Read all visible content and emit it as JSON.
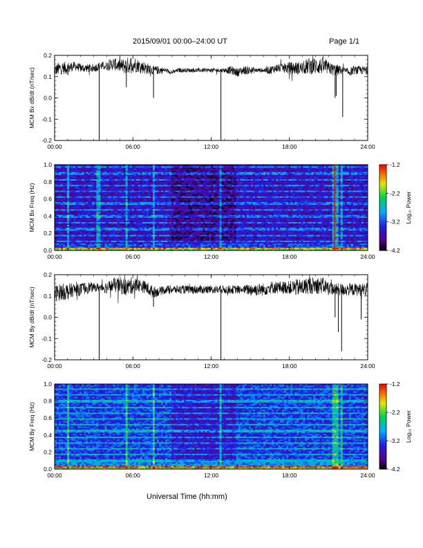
{
  "header": {
    "title": "2015/09/01  00:00–24:00 UT",
    "page": "Page 1/1"
  },
  "footer": {
    "xlabel": "Universal Time (hh:mm)"
  },
  "chart_data": [
    {
      "type": "line",
      "ylabel": "MCM Bx dB/dt (nT/sec)",
      "xlim": [
        "00:00",
        "24:00"
      ],
      "ylim": [
        -0.2,
        0.2
      ],
      "x_ticks": [
        "00:00",
        "06:00",
        "12:00",
        "18:00",
        "24:00"
      ],
      "y_ticks": [
        "-0.2",
        "-0.1",
        "0.0",
        "0.1",
        "0.2"
      ],
      "series": [
        {
          "x": [
            "00:00",
            "00:30",
            "01:00",
            "01:30",
            "02:00",
            "02:30",
            "03:00",
            "03:30",
            "04:00",
            "04:30",
            "05:00",
            "05:30",
            "06:00",
            "06:30",
            "07:00",
            "07:30",
            "08:00",
            "08:30",
            "09:00",
            "09:30",
            "10:00",
            "10:30",
            "11:00",
            "11:30",
            "12:00",
            "12:30",
            "13:00",
            "13:30",
            "14:00",
            "14:30",
            "15:00",
            "15:30",
            "16:00",
            "16:30",
            "17:00",
            "17:30",
            "18:00",
            "18:30",
            "19:00",
            "19:30",
            "20:00",
            "20:30",
            "21:00",
            "21:30",
            "22:00",
            "22:30",
            "23:00",
            "23:30",
            "24:00"
          ],
          "mean": [
            0.13,
            0.14,
            0.14,
            0.15,
            0.14,
            0.14,
            0.14,
            0.15,
            0.15,
            0.16,
            0.15,
            0.15,
            0.16,
            0.15,
            0.14,
            0.13,
            0.13,
            0.13,
            0.12,
            0.13,
            0.13,
            0.13,
            0.13,
            0.13,
            0.13,
            0.13,
            0.13,
            0.13,
            0.12,
            0.13,
            0.13,
            0.13,
            0.13,
            0.13,
            0.14,
            0.14,
            0.14,
            0.14,
            0.14,
            0.15,
            0.15,
            0.15,
            0.14,
            0.13,
            0.13,
            0.12,
            0.13,
            0.13,
            0.13
          ],
          "amp": [
            0.03,
            0.03,
            0.03,
            0.02,
            0.02,
            0.02,
            0.02,
            0.02,
            0.02,
            0.03,
            0.03,
            0.04,
            0.04,
            0.03,
            0.03,
            0.02,
            0.02,
            0.01,
            0.01,
            0.01,
            0.01,
            0.01,
            0.01,
            0.01,
            0.01,
            0.01,
            0.01,
            0.02,
            0.02,
            0.02,
            0.02,
            0.01,
            0.01,
            0.02,
            0.02,
            0.02,
            0.03,
            0.03,
            0.03,
            0.04,
            0.04,
            0.04,
            0.03,
            0.03,
            0.02,
            0.02,
            0.02,
            0.02,
            0.02
          ]
        }
      ],
      "spikes": [
        {
          "t": "03:25",
          "y": -0.2
        },
        {
          "t": "05:30",
          "y": 0.05
        },
        {
          "t": "07:35",
          "y": 0.0
        },
        {
          "t": "12:45",
          "y": -0.2
        },
        {
          "t": "21:30",
          "y": -0.0
        },
        {
          "t": "21:35",
          "y": 0.01
        },
        {
          "t": "22:05",
          "y": -0.09
        }
      ]
    },
    {
      "type": "heatmap",
      "ylabel": "MCM Bx Freq (Hz)",
      "colorbar_label": "Log₁₀ Power",
      "xlim": [
        "00:00",
        "24:00"
      ],
      "ylim": [
        0.0,
        1.0
      ],
      "x_ticks": [
        "00:00",
        "06:00",
        "12:00",
        "18:00",
        "24:00"
      ],
      "y_ticks": [
        "0.0",
        "0.2",
        "0.4",
        "0.6",
        "0.8",
        "1.0"
      ],
      "colorbar_ticks": [
        "-1.2",
        "-2.2",
        "-3.2",
        "-4.2"
      ],
      "clim": [
        -4.2,
        -1.2
      ],
      "base_power": -3.6,
      "harmonic_lines_hz": [
        0.03,
        0.11,
        0.18,
        0.25,
        0.33,
        0.4,
        0.47,
        0.55,
        0.62,
        0.69,
        0.76,
        0.83,
        0.9,
        0.97
      ],
      "vertical_events": [
        "01:00",
        "03:20",
        "05:30",
        "07:35",
        "12:45",
        "21:25",
        "21:35",
        "22:00"
      ]
    },
    {
      "type": "line",
      "ylabel": "MCM By dB/dt (nT/sec)",
      "xlim": [
        "00:00",
        "24:00"
      ],
      "ylim": [
        -0.2,
        0.2
      ],
      "x_ticks": [
        "00:00",
        "06:00",
        "12:00",
        "18:00",
        "24:00"
      ],
      "y_ticks": [
        "-0.2",
        "-0.1",
        "0.0",
        "0.1",
        "0.2"
      ],
      "series": [
        {
          "x": [
            "00:00",
            "00:30",
            "01:00",
            "01:30",
            "02:00",
            "02:30",
            "03:00",
            "03:30",
            "04:00",
            "04:30",
            "05:00",
            "05:30",
            "06:00",
            "06:30",
            "07:00",
            "07:30",
            "08:00",
            "08:30",
            "09:00",
            "09:30",
            "10:00",
            "10:30",
            "11:00",
            "11:30",
            "12:00",
            "12:30",
            "13:00",
            "13:30",
            "14:00",
            "14:30",
            "15:00",
            "15:30",
            "16:00",
            "16:30",
            "17:00",
            "17:30",
            "18:00",
            "18:30",
            "19:00",
            "19:30",
            "20:00",
            "20:30",
            "21:00",
            "21:30",
            "22:00",
            "22:30",
            "23:00",
            "23:30",
            "24:00"
          ],
          "mean": [
            0.11,
            0.12,
            0.12,
            0.13,
            0.13,
            0.14,
            0.14,
            0.14,
            0.14,
            0.15,
            0.15,
            0.14,
            0.15,
            0.15,
            0.14,
            0.12,
            0.12,
            0.13,
            0.13,
            0.13,
            0.13,
            0.13,
            0.13,
            0.13,
            0.13,
            0.13,
            0.13,
            0.13,
            0.13,
            0.13,
            0.13,
            0.13,
            0.13,
            0.14,
            0.14,
            0.14,
            0.14,
            0.14,
            0.14,
            0.15,
            0.15,
            0.15,
            0.14,
            0.13,
            0.13,
            0.13,
            0.13,
            0.13,
            0.13
          ],
          "amp": [
            0.04,
            0.04,
            0.04,
            0.03,
            0.03,
            0.03,
            0.02,
            0.02,
            0.03,
            0.03,
            0.04,
            0.04,
            0.04,
            0.03,
            0.03,
            0.03,
            0.02,
            0.02,
            0.02,
            0.02,
            0.02,
            0.02,
            0.02,
            0.02,
            0.02,
            0.02,
            0.02,
            0.02,
            0.02,
            0.02,
            0.03,
            0.03,
            0.03,
            0.03,
            0.03,
            0.03,
            0.03,
            0.04,
            0.04,
            0.04,
            0.04,
            0.04,
            0.03,
            0.03,
            0.03,
            0.03,
            0.03,
            0.03,
            0.03
          ]
        }
      ],
      "spikes": [
        {
          "t": "03:25",
          "y": -0.2
        },
        {
          "t": "07:35",
          "y": 0.05
        },
        {
          "t": "12:45",
          "y": -0.2
        },
        {
          "t": "21:30",
          "y": 0.0
        },
        {
          "t": "21:45",
          "y": -0.07
        },
        {
          "t": "22:00",
          "y": -0.16
        },
        {
          "t": "23:30",
          "y": -0.01
        }
      ]
    },
    {
      "type": "heatmap",
      "ylabel": "MCM By Freq (Hz)",
      "colorbar_label": "Log₁₀ Power",
      "xlim": [
        "00:00",
        "24:00"
      ],
      "ylim": [
        0.0,
        1.0
      ],
      "x_ticks": [
        "00:00",
        "06:00",
        "12:00",
        "18:00",
        "24:00"
      ],
      "y_ticks": [
        "0.0",
        "0.2",
        "0.4",
        "0.6",
        "0.8",
        "1.0"
      ],
      "colorbar_ticks": [
        "-1.2",
        "-2.2",
        "-3.2",
        "-4.2"
      ],
      "clim": [
        -4.2,
        -1.2
      ],
      "base_power": -3.3,
      "harmonic_lines_hz": [
        0.03,
        0.1,
        0.17,
        0.24,
        0.31,
        0.38,
        0.45,
        0.52,
        0.59,
        0.66,
        0.73,
        0.8,
        0.87,
        0.94
      ],
      "vertical_events": [
        "01:00",
        "05:30",
        "07:35",
        "12:45",
        "21:25",
        "21:40",
        "22:00"
      ]
    }
  ]
}
